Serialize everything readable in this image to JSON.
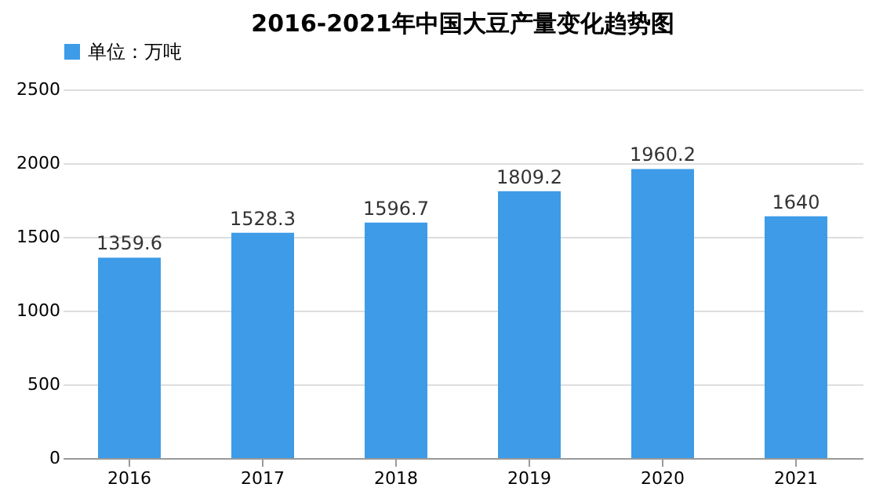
{
  "chart_data": {
    "type": "bar",
    "title": "2016-2021年中国大豆产量变化趋势图",
    "categories": [
      "2016",
      "2017",
      "2018",
      "2019",
      "2020",
      "2021"
    ],
    "series": [
      {
        "name": "单位：万吨",
        "color": "#3d9be8",
        "values": [
          1359.6,
          1528.3,
          1596.7,
          1809.2,
          1960.2,
          1640
        ]
      }
    ],
    "ylim": [
      0,
      2500
    ],
    "yticks": [
      0,
      500,
      1000,
      1500,
      2000,
      2500
    ],
    "grid": "y",
    "legend": "top",
    "data_labels": true
  }
}
